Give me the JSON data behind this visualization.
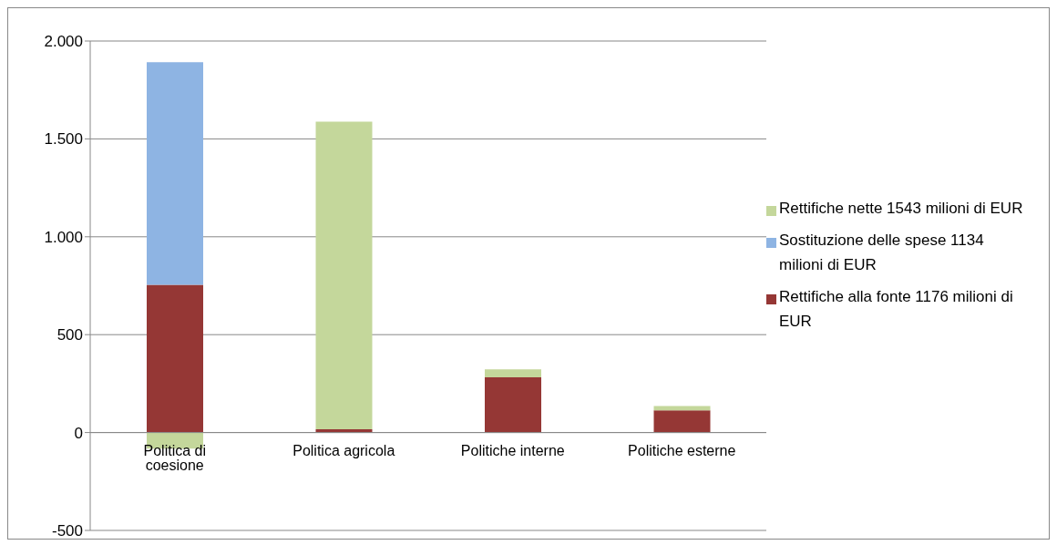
{
  "chart_data": {
    "type": "bar",
    "stacked": true,
    "categories": [
      "Politica di coesione",
      "Politica agricola",
      "Politiche interne",
      "Politiche esterne"
    ],
    "series": [
      {
        "name": "Rettifiche alla fonte 1176 milioni di EUR",
        "color": "#953735",
        "values": [
          755,
          17,
          282,
          113
        ]
      },
      {
        "name": "Sostituzione delle spese 1134 milioni di EUR",
        "color": "#8eb4e3",
        "values": [
          1137,
          null,
          null,
          null
        ]
      },
      {
        "name": "Rettifiche nette 1543 milioni di EUR",
        "color": "#c4d79b",
        "values": [
          -82,
          1571,
          41,
          23
        ]
      }
    ],
    "ylim": [
      -500,
      2000
    ],
    "yticks": [
      {
        "value": -500,
        "label": "-500"
      },
      0,
      500,
      {
        "value": 1000,
        "label": "1.000"
      },
      {
        "value": 1500,
        "label": "1.500"
      },
      {
        "value": 2000,
        "label": "2.000"
      }
    ],
    "grid": "y",
    "legend": "right"
  }
}
